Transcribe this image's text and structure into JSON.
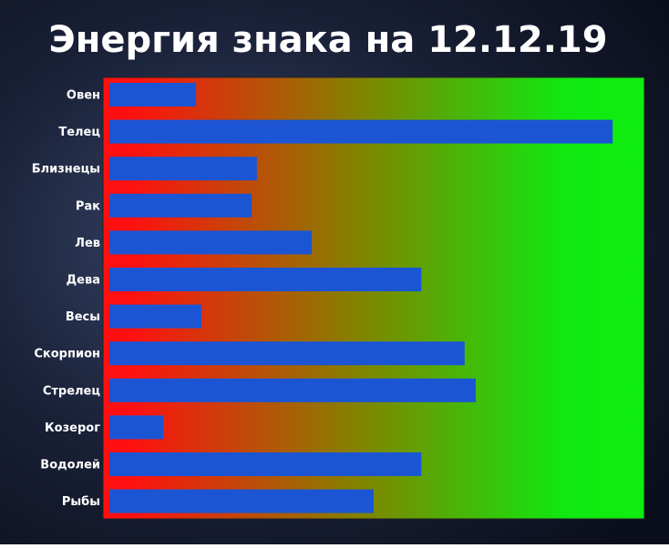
{
  "chart_data": {
    "type": "bar",
    "orientation": "horizontal",
    "title": "Энергия знака на 12.12.19",
    "categories": [
      "Овен",
      "Телец",
      "Близнецы",
      "Рак",
      "Лев",
      "Дева",
      "Весы",
      "Скорпион",
      "Стрелец",
      "Козерог",
      "Водолей",
      "Рыбы"
    ],
    "values": [
      16.4,
      95.2,
      27.9,
      26.9,
      38.3,
      59,
      17.4,
      67.2,
      69.3,
      10.2,
      59,
      50
    ],
    "color": "#1b55d4",
    "xlim": [
      0,
      100
    ]
  }
}
